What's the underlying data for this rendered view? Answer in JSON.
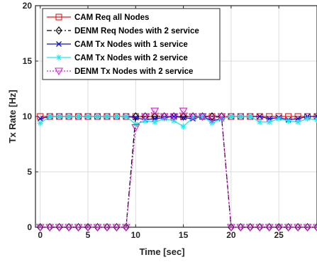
{
  "chart_data": {
    "type": "line",
    "title": "",
    "xlabel": "Time [sec]",
    "ylabel": "Tx Rate [Hz]",
    "xlim": [
      -0.5,
      29
    ],
    "ylim": [
      0,
      20
    ],
    "xticks": [
      0,
      5,
      10,
      15,
      20,
      25
    ],
    "yticks": [
      0,
      5,
      10,
      15,
      20
    ],
    "grid": true,
    "legend_position": "top-left",
    "series": [
      {
        "name": "CAM Req all Nodes",
        "color": "#e8191e",
        "marker": "square",
        "dash": "solid",
        "x": [
          0,
          1,
          2,
          3,
          4,
          5,
          6,
          7,
          8,
          9,
          10,
          11,
          12,
          13,
          14,
          15,
          16,
          17,
          18,
          19,
          20,
          21,
          22,
          23,
          24,
          25,
          26,
          27,
          28,
          29
        ],
        "y": [
          10,
          10,
          10,
          10,
          10,
          10,
          10,
          10,
          10,
          10,
          10,
          10,
          10,
          10,
          10,
          10,
          10,
          10,
          10,
          10,
          10,
          10,
          10,
          10,
          10,
          10,
          10,
          10,
          10,
          10
        ]
      },
      {
        "name": "DENM Req Nodes with 2 service",
        "color": "#000000",
        "marker": "diamond",
        "dash": "dashdot",
        "x": [
          0,
          1,
          2,
          3,
          4,
          5,
          6,
          7,
          8,
          9,
          10,
          11,
          12,
          13,
          14,
          15,
          16,
          17,
          18,
          19,
          20,
          21,
          22,
          23,
          24,
          25,
          26,
          27,
          28,
          29
        ],
        "y": [
          0,
          0,
          0,
          0,
          0,
          0,
          0,
          0,
          0,
          0,
          10,
          10,
          10,
          10,
          10,
          10,
          10,
          10,
          10,
          10,
          0,
          0,
          0,
          0,
          0,
          0,
          0,
          0,
          0,
          0
        ]
      },
      {
        "name": "CAM Tx Nodes with 1 service",
        "color": "#1010c8",
        "marker": "x",
        "dash": "solid",
        "x": [
          0,
          1,
          2,
          3,
          4,
          5,
          6,
          7,
          8,
          9,
          10,
          11,
          12,
          13,
          14,
          15,
          16,
          17,
          18,
          19,
          20,
          21,
          22,
          23,
          24,
          25,
          26,
          27,
          28,
          29
        ],
        "y": [
          9.8,
          10,
          10,
          10,
          10,
          10,
          10,
          10,
          10,
          10,
          9.9,
          9.7,
          9.8,
          9.9,
          10,
          9.9,
          9.8,
          10,
          9.6,
          9.8,
          10,
          10,
          10,
          10,
          9.8,
          9.9,
          9.7,
          9.8,
          10,
          10
        ]
      },
      {
        "name": "CAM Tx Nodes with 2 service",
        "color": "#21e8e8",
        "marker": "star",
        "dash": "solid",
        "x": [
          0,
          1,
          2,
          3,
          4,
          5,
          6,
          7,
          8,
          9,
          10,
          11,
          12,
          13,
          14,
          15,
          16,
          17,
          18,
          19,
          20,
          21,
          22,
          23,
          24,
          25,
          26,
          27,
          28,
          29
        ],
        "y": [
          9.4,
          10,
          10,
          10,
          10,
          10,
          10,
          10,
          10,
          10,
          9.3,
          9.6,
          9.5,
          9.8,
          9.6,
          9.1,
          9.9,
          10,
          9.4,
          9.8,
          10,
          10,
          10,
          9.5,
          9.5,
          9.8,
          9.6,
          9.5,
          9.8,
          9.7
        ]
      },
      {
        "name": "DENM Tx Nodes with 2 service",
        "color": "#e01ee0",
        "marker": "triangle-down",
        "dash": "dotted",
        "x": [
          0,
          1,
          2,
          3,
          4,
          5,
          6,
          7,
          8,
          9,
          10,
          11,
          12,
          13,
          14,
          15,
          16,
          17,
          18,
          19,
          20,
          21,
          22,
          23,
          24,
          25,
          26,
          27,
          28,
          29
        ],
        "y": [
          0,
          0,
          0,
          0,
          0,
          0,
          0,
          0,
          0,
          0,
          9,
          10,
          10.5,
          10,
          10,
          10.5,
          10,
          10,
          9.8,
          10,
          0,
          0,
          0,
          0,
          0,
          0,
          0,
          0,
          0,
          0
        ]
      }
    ]
  }
}
